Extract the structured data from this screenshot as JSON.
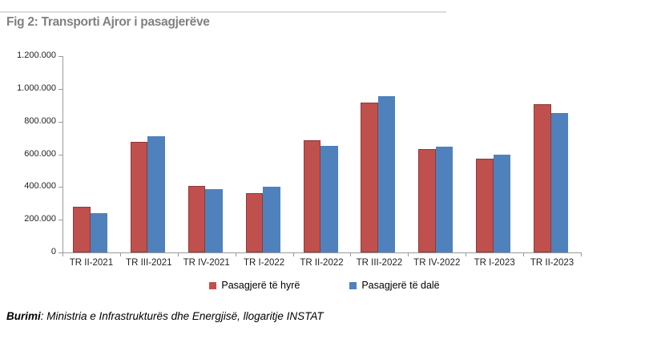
{
  "title": "Fig 2: Transporti Ajror i pasagjerëve",
  "footer": {
    "source_label": "Burimi",
    "source_text": ": Ministria e Infrastrukturës dhe Energjisë, llogaritje INSTAT"
  },
  "colors": {
    "series_hyre": "#C0504D",
    "series_dale": "#4F81BD",
    "axis": "#9A9A9A",
    "title_text": "#808080"
  },
  "chart_data": {
    "type": "bar",
    "title": "Fig 2: Transporti Ajror i pasagjerëve",
    "categories": [
      "TR II-2021",
      "TR III-2021",
      "TR IV-2021",
      "TR I-2022",
      "TR II-2022",
      "TR III-2022",
      "TR IV-2022",
      "TR I-2023",
      "TR II-2023"
    ],
    "series": [
      {
        "name": "Pasagjerë të hyrë",
        "color": "#C0504D",
        "values": [
          277000,
          678000,
          408000,
          363000,
          686000,
          915000,
          632000,
          572000,
          905000
        ]
      },
      {
        "name": "Pasagjerë të dalë",
        "color": "#4F81BD",
        "values": [
          240000,
          710000,
          388000,
          402000,
          652000,
          957000,
          648000,
          600000,
          850000
        ]
      }
    ],
    "xlabel": "",
    "ylabel": "",
    "ylim": [
      0,
      1200000
    ],
    "yticks": [
      0,
      200000,
      400000,
      600000,
      800000,
      1000000,
      1200000
    ],
    "ytick_labels": [
      "0",
      "200.000",
      "400.000",
      "600.000",
      "800.000",
      "1.000.000",
      "1.200.000"
    ],
    "grid": false,
    "legend_position": "bottom-center"
  }
}
